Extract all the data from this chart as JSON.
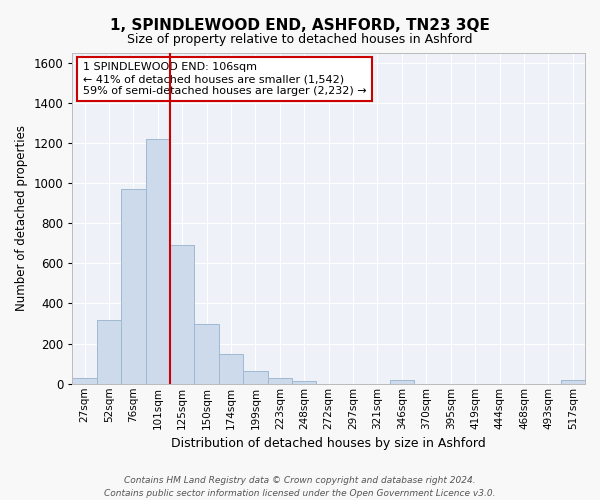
{
  "title": "1, SPINDLEWOOD END, ASHFORD, TN23 3QE",
  "subtitle": "Size of property relative to detached houses in Ashford",
  "xlabel": "Distribution of detached houses by size in Ashford",
  "ylabel": "Number of detached properties",
  "bar_color": "#ccdaec",
  "bar_edge_color": "#a0b8d0",
  "background_color": "#eef2f8",
  "grid_color": "#ffffff",
  "annotation_box_color": "#cc0000",
  "vline_color": "#cc0000",
  "annotation_text": "1 SPINDLEWOOD END: 106sqm\n← 41% of detached houses are smaller (1,542)\n59% of semi-detached houses are larger (2,232) →",
  "footer_text": "Contains HM Land Registry data © Crown copyright and database right 2024.\nContains public sector information licensed under the Open Government Licence v3.0.",
  "categories": [
    "27sqm",
    "52sqm",
    "76sqm",
    "101sqm",
    "125sqm",
    "150sqm",
    "174sqm",
    "199sqm",
    "223sqm",
    "248sqm",
    "272sqm",
    "297sqm",
    "321sqm",
    "346sqm",
    "370sqm",
    "395sqm",
    "419sqm",
    "444sqm",
    "468sqm",
    "493sqm",
    "517sqm"
  ],
  "values": [
    30,
    320,
    970,
    1220,
    690,
    300,
    150,
    65,
    28,
    12,
    0,
    0,
    0,
    20,
    0,
    0,
    0,
    0,
    0,
    0,
    20
  ],
  "ylim": [
    0,
    1650
  ],
  "yticks": [
    0,
    200,
    400,
    600,
    800,
    1000,
    1200,
    1400,
    1600
  ],
  "vline_index": 3.5
}
